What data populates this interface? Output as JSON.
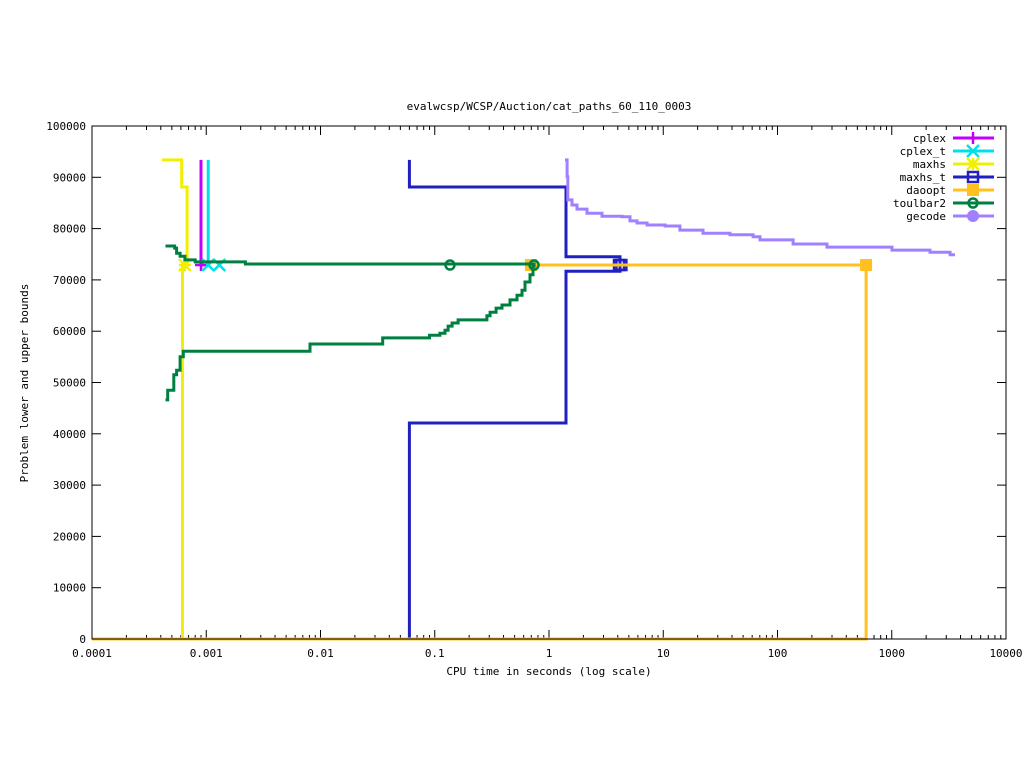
{
  "chart_data": {
    "type": "line",
    "title": "evalwcsp/WCSP/Auction/cat_paths_60_110_0003",
    "xlabel": "CPU time in seconds (log scale)",
    "ylabel": "Problem lower and upper bounds",
    "xscale": "log",
    "xlim": [
      0.0001,
      10000
    ],
    "ylim": [
      0,
      100000
    ],
    "xticks": [
      {
        "value": 0.0001,
        "label": "0.0001"
      },
      {
        "value": 0.001,
        "label": "0.001"
      },
      {
        "value": 0.01,
        "label": "0.01"
      },
      {
        "value": 0.1,
        "label": "0.1"
      },
      {
        "value": 1,
        "label": "1"
      },
      {
        "value": 10,
        "label": "10"
      },
      {
        "value": 100,
        "label": "100"
      },
      {
        "value": 1000,
        "label": "1000"
      },
      {
        "value": 10000,
        "label": "10000"
      }
    ],
    "yticks": [
      {
        "value": 0,
        "label": "0"
      },
      {
        "value": 10000,
        "label": "10000"
      },
      {
        "value": 20000,
        "label": "20000"
      },
      {
        "value": 30000,
        "label": "30000"
      },
      {
        "value": 40000,
        "label": "40000"
      },
      {
        "value": 50000,
        "label": "50000"
      },
      {
        "value": 60000,
        "label": "60000"
      },
      {
        "value": 70000,
        "label": "70000"
      },
      {
        "value": 80000,
        "label": "80000"
      },
      {
        "value": 90000,
        "label": "90000"
      },
      {
        "value": 100000,
        "label": "100000"
      }
    ],
    "grid": false,
    "legend_position": "top-right",
    "series": [
      {
        "name": "cplex",
        "color": "#c000ff",
        "marker": "plus",
        "lines": [
          [
            [
              0.0009,
              93400
            ],
            [
              0.0009,
              72900
            ],
            [
              0.00095,
              72900
            ]
          ]
        ],
        "markers": [
          [
            0.0009,
            72900
          ]
        ]
      },
      {
        "name": "cplex_t",
        "color": "#00e0e8",
        "marker": "cross",
        "lines": [
          [
            [
              0.00104,
              93400
            ],
            [
              0.00104,
              72900
            ]
          ]
        ],
        "markers": [
          [
            0.00104,
            72900
          ],
          [
            0.0013,
            72900
          ]
        ]
      },
      {
        "name": "maxhs",
        "color": "#f0f000",
        "marker": "star",
        "lines": [
          [
            [
              0.00041,
              93400
            ],
            [
              0.00061,
              88100
            ],
            [
              0.00068,
              72900
            ]
          ],
          [
            [
              0.00062,
              0
            ],
            [
              0.00062,
              72900
            ]
          ]
        ],
        "markers": [
          [
            0.00065,
            72900
          ]
        ]
      },
      {
        "name": "maxhs_t",
        "color": "#2020c0",
        "marker": "open-square",
        "lines": [
          [
            [
              0.06,
              93400
            ],
            [
              0.06,
              88100
            ],
            [
              1.41,
              74500
            ],
            [
              4.18,
              72900
            ]
          ],
          [
            [
              0.06,
              0
            ],
            [
              0.06,
              42100
            ],
            [
              1.41,
              71700
            ],
            [
              4.18,
              72900
            ]
          ]
        ],
        "markers": [
          [
            4.1,
            72900
          ],
          [
            4.3,
            72900
          ]
        ]
      },
      {
        "name": "daoopt",
        "color": "#ffc020",
        "marker": "filled-square",
        "lines": [
          [
            [
              0.0001,
              0
            ],
            [
              596,
              72900
            ]
          ],
          [
            [
              0.695,
              72900
            ],
            [
              596,
              72900
            ]
          ]
        ],
        "markers": [
          [
            0.695,
            72900
          ],
          [
            596,
            72900
          ]
        ]
      },
      {
        "name": "toulbar2",
        "color": "#008040",
        "marker": "open-circle",
        "lines": [
          [
            [
              0.00044,
              76600
            ],
            [
              0.00053,
              76200
            ],
            [
              0.00055,
              75200
            ],
            [
              0.00059,
              74600
            ],
            [
              0.00065,
              73900
            ],
            [
              0.0008,
              73500
            ],
            [
              0.0022,
              73100
            ],
            [
              0.74,
              72900
            ]
          ],
          [
            [
              0.00044,
              46600
            ],
            [
              0.00046,
              48500
            ],
            [
              0.00052,
              51500
            ],
            [
              0.00055,
              52400
            ],
            [
              0.00059,
              55000
            ],
            [
              0.00063,
              56100
            ],
            [
              0.0081,
              57500
            ],
            [
              0.035,
              58700
            ],
            [
              0.09,
              59200
            ],
            [
              0.111,
              59600
            ],
            [
              0.123,
              60200
            ],
            [
              0.131,
              61000
            ],
            [
              0.142,
              61600
            ],
            [
              0.16,
              62200
            ],
            [
              0.286,
              63000
            ],
            [
              0.305,
              63700
            ],
            [
              0.344,
              64500
            ],
            [
              0.388,
              65100
            ],
            [
              0.456,
              66100
            ],
            [
              0.525,
              67000
            ],
            [
              0.58,
              68000
            ],
            [
              0.617,
              69600
            ],
            [
              0.682,
              71000
            ],
            [
              0.724,
              72700
            ],
            [
              0.74,
              72900
            ]
          ]
        ],
        "markers": [
          [
            0.136,
            72900
          ],
          [
            0.74,
            72900
          ]
        ]
      },
      {
        "name": "gecode",
        "color": "#a080ff",
        "marker": "filled-circle",
        "lines": [
          [
            [
              1.38,
              93400
            ],
            [
              1.44,
              90100
            ],
            [
              1.46,
              85600
            ],
            [
              1.59,
              84600
            ],
            [
              1.76,
              83800
            ],
            [
              2.15,
              83000
            ],
            [
              2.91,
              82400
            ],
            [
              4.36,
              82300
            ],
            [
              5.12,
              81500
            ],
            [
              5.89,
              81100
            ],
            [
              7.22,
              80700
            ],
            [
              10.4,
              80500
            ],
            [
              14.0,
              79700
            ],
            [
              22.3,
              79100
            ],
            [
              38.4,
              78800
            ],
            [
              61.1,
              78400
            ],
            [
              70.3,
              77800
            ],
            [
              137,
              77000
            ],
            [
              271,
              76400
            ],
            [
              743,
              76400
            ],
            [
              1005,
              75800
            ],
            [
              2160,
              75400
            ],
            [
              3240,
              74900
            ],
            [
              3580,
              74900
            ]
          ]
        ],
        "markers": []
      }
    ]
  }
}
